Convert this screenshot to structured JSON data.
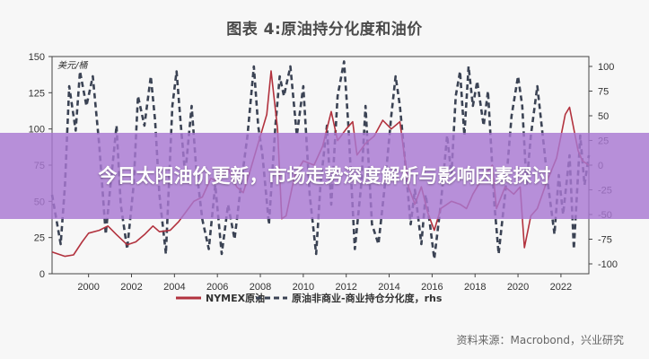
{
  "page": {
    "headline": "今日太阳油价更新，市场走势深度解析与影响因素探讨",
    "source": "资料来源：Macrobond，兴业研究"
  },
  "chart_data": {
    "type": "line",
    "title": "图表 4:原油持分化度和油价",
    "left_unit": "美元/桶",
    "y_left": {
      "lim": [
        0,
        150
      ],
      "ticks": [
        0,
        25,
        50,
        75,
        100,
        125,
        150
      ]
    },
    "y_right": {
      "lim": [
        -110,
        110
      ],
      "ticks": [
        -100,
        -75,
        -50,
        -25,
        0,
        25,
        50,
        75,
        100
      ]
    },
    "x": {
      "lim": [
        1998.3,
        2023.3
      ],
      "ticks": [
        2000,
        2002,
        2004,
        2006,
        2008,
        2010,
        2012,
        2014,
        2016,
        2018,
        2020,
        2022
      ]
    },
    "legend": [
      "NYMEX原油",
      "原油非商业-商业持仓分化度，rhs"
    ],
    "colors": {
      "oil": "#b2323e",
      "dispersion": "#3b4354"
    },
    "series": [
      {
        "name": "NYMEX原油",
        "axis": "left",
        "points": [
          [
            1998.3,
            15
          ],
          [
            1998.9,
            12
          ],
          [
            1999.3,
            13
          ],
          [
            1999.7,
            22
          ],
          [
            2000.0,
            28
          ],
          [
            2000.5,
            30
          ],
          [
            2000.9,
            33
          ],
          [
            2001.3,
            27
          ],
          [
            2001.8,
            20
          ],
          [
            2002.2,
            22
          ],
          [
            2002.6,
            27
          ],
          [
            2003.0,
            33
          ],
          [
            2003.3,
            29
          ],
          [
            2003.8,
            30
          ],
          [
            2004.2,
            36
          ],
          [
            2004.6,
            44
          ],
          [
            2004.9,
            50
          ],
          [
            2005.3,
            53
          ],
          [
            2005.7,
            66
          ],
          [
            2006.0,
            63
          ],
          [
            2006.5,
            73
          ],
          [
            2006.9,
            60
          ],
          [
            2007.2,
            56
          ],
          [
            2007.5,
            70
          ],
          [
            2007.9,
            90
          ],
          [
            2008.3,
            110
          ],
          [
            2008.5,
            140
          ],
          [
            2008.8,
            100
          ],
          [
            2009.0,
            38
          ],
          [
            2009.2,
            40
          ],
          [
            2009.6,
            68
          ],
          [
            2010.0,
            78
          ],
          [
            2010.5,
            75
          ],
          [
            2010.9,
            88
          ],
          [
            2011.3,
            112
          ],
          [
            2011.6,
            92
          ],
          [
            2012.0,
            100
          ],
          [
            2012.3,
            105
          ],
          [
            2012.5,
            82
          ],
          [
            2012.9,
            90
          ],
          [
            2013.3,
            95
          ],
          [
            2013.7,
            106
          ],
          [
            2014.1,
            100
          ],
          [
            2014.5,
            105
          ],
          [
            2014.9,
            60
          ],
          [
            2015.2,
            48
          ],
          [
            2015.5,
            60
          ],
          [
            2015.8,
            42
          ],
          [
            2016.1,
            30
          ],
          [
            2016.4,
            45
          ],
          [
            2016.9,
            50
          ],
          [
            2017.3,
            48
          ],
          [
            2017.6,
            45
          ],
          [
            2017.9,
            55
          ],
          [
            2018.3,
            65
          ],
          [
            2018.8,
            75
          ],
          [
            2019.0,
            45
          ],
          [
            2019.4,
            60
          ],
          [
            2019.8,
            55
          ],
          [
            2020.1,
            60
          ],
          [
            2020.3,
            18
          ],
          [
            2020.6,
            40
          ],
          [
            2020.9,
            45
          ],
          [
            2021.3,
            62
          ],
          [
            2021.8,
            80
          ],
          [
            2022.2,
            110
          ],
          [
            2022.4,
            115
          ],
          [
            2022.8,
            85
          ],
          [
            2023.0,
            78
          ],
          [
            2023.3,
            75
          ]
        ]
      },
      {
        "name": "原油非商业-商业持仓分化度，rhs",
        "axis": "right",
        "points": [
          [
            1998.3,
            -30
          ],
          [
            1998.7,
            -80
          ],
          [
            1998.9,
            -20
          ],
          [
            1999.1,
            80
          ],
          [
            1999.4,
            35
          ],
          [
            1999.6,
            95
          ],
          [
            1999.9,
            60
          ],
          [
            2000.2,
            90
          ],
          [
            2000.5,
            20
          ],
          [
            2000.8,
            -70
          ],
          [
            2001.0,
            -25
          ],
          [
            2001.3,
            40
          ],
          [
            2001.5,
            -40
          ],
          [
            2001.8,
            -85
          ],
          [
            2002.1,
            -20
          ],
          [
            2002.3,
            70
          ],
          [
            2002.6,
            40
          ],
          [
            2002.9,
            90
          ],
          [
            2003.1,
            45
          ],
          [
            2003.3,
            -30
          ],
          [
            2003.6,
            -90
          ],
          [
            2003.9,
            60
          ],
          [
            2004.1,
            95
          ],
          [
            2004.3,
            40
          ],
          [
            2004.5,
            -10
          ],
          [
            2004.8,
            60
          ],
          [
            2005.0,
            0
          ],
          [
            2005.3,
            -55
          ],
          [
            2005.6,
            -85
          ],
          [
            2005.9,
            -20
          ],
          [
            2006.2,
            -90
          ],
          [
            2006.5,
            -40
          ],
          [
            2006.8,
            -75
          ],
          [
            2007.1,
            -20
          ],
          [
            2007.4,
            30
          ],
          [
            2007.7,
            100
          ],
          [
            2007.9,
            40
          ],
          [
            2008.1,
            10
          ],
          [
            2008.4,
            -60
          ],
          [
            2008.7,
            40
          ],
          [
            2008.9,
            90
          ],
          [
            2009.1,
            70
          ],
          [
            2009.4,
            100
          ],
          [
            2009.7,
            30
          ],
          [
            2010.0,
            80
          ],
          [
            2010.3,
            -30
          ],
          [
            2010.6,
            -90
          ],
          [
            2010.8,
            -20
          ],
          [
            2011.1,
            40
          ],
          [
            2011.3,
            -40
          ],
          [
            2011.6,
            70
          ],
          [
            2011.9,
            105
          ],
          [
            2012.1,
            40
          ],
          [
            2012.4,
            -85
          ],
          [
            2012.7,
            -20
          ],
          [
            2012.9,
            60
          ],
          [
            2013.2,
            -60
          ],
          [
            2013.5,
            -80
          ],
          [
            2013.8,
            -20
          ],
          [
            2014.1,
            50
          ],
          [
            2014.3,
            90
          ],
          [
            2014.5,
            60
          ],
          [
            2014.8,
            -10
          ],
          [
            2015.0,
            -60
          ],
          [
            2015.2,
            -25
          ],
          [
            2015.5,
            -80
          ],
          [
            2015.7,
            -30
          ],
          [
            2015.9,
            -60
          ],
          [
            2016.1,
            -95
          ],
          [
            2016.4,
            -40
          ],
          [
            2016.7,
            30
          ],
          [
            2016.9,
            -10
          ],
          [
            2017.1,
            70
          ],
          [
            2017.3,
            95
          ],
          [
            2017.5,
            30
          ],
          [
            2017.7,
            100
          ],
          [
            2017.9,
            60
          ],
          [
            2018.1,
            85
          ],
          [
            2018.4,
            40
          ],
          [
            2018.6,
            75
          ],
          [
            2018.9,
            -40
          ],
          [
            2019.1,
            -90
          ],
          [
            2019.4,
            -30
          ],
          [
            2019.7,
            50
          ],
          [
            2020.0,
            90
          ],
          [
            2020.2,
            60
          ],
          [
            2020.4,
            -20
          ],
          [
            2020.6,
            30
          ],
          [
            2020.9,
            80
          ],
          [
            2021.1,
            40
          ],
          [
            2021.4,
            -20
          ],
          [
            2021.7,
            -70
          ],
          [
            2021.9,
            -10
          ],
          [
            2022.1,
            -50
          ],
          [
            2022.4,
            10
          ],
          [
            2022.6,
            -85
          ],
          [
            2022.9,
            30
          ],
          [
            2023.1,
            -20
          ],
          [
            2023.3,
            10
          ]
        ]
      }
    ]
  }
}
